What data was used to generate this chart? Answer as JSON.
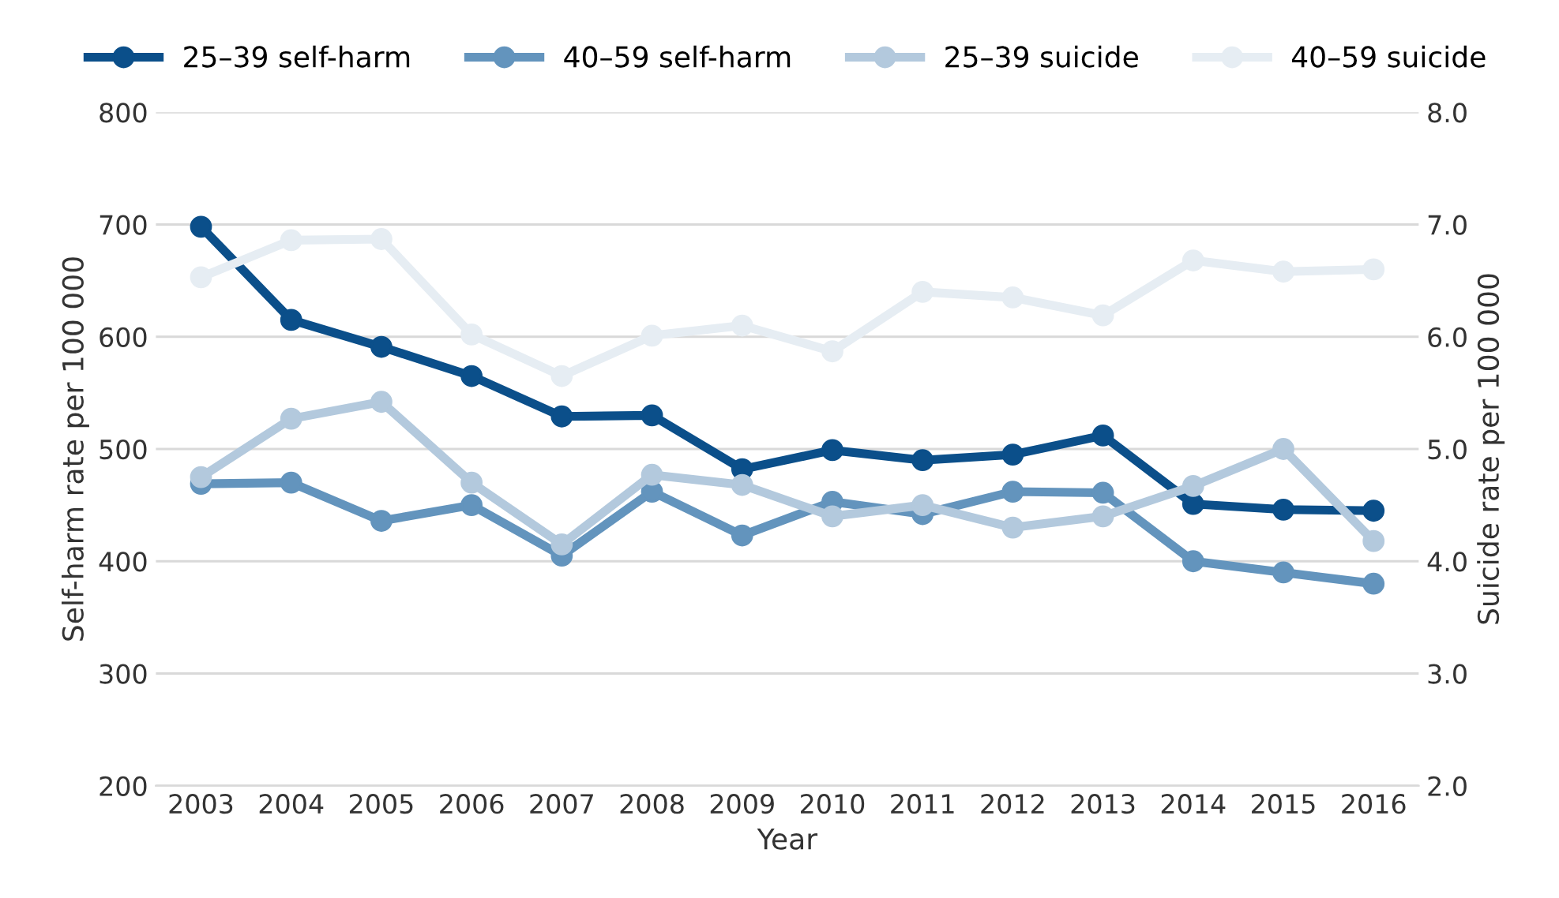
{
  "chart_data": {
    "type": "line",
    "xlabel": "Year",
    "ylabel": "Self-harm rate per 100 000",
    "y2label": "Suicide rate per 100 000",
    "categories": [
      "2003",
      "2004",
      "2005",
      "2006",
      "2007",
      "2008",
      "2009",
      "2010",
      "2011",
      "2012",
      "2013",
      "2014",
      "2015",
      "2016"
    ],
    "series": [
      {
        "name": "25–39 self-harm",
        "color": "#0b4f8a",
        "values": [
          698,
          615,
          591,
          565,
          529,
          530,
          482,
          499,
          490,
          495,
          512,
          451,
          446,
          445
        ]
      },
      {
        "name": "40–59 self-harm",
        "color": "#6394bd",
        "values": [
          469,
          470,
          436,
          450,
          405,
          462,
          423,
          453,
          442,
          462,
          461,
          400,
          390,
          380
        ]
      },
      {
        "name": "25–39 suicide",
        "color": "#b3c9dd",
        "axis": "y2",
        "values": [
          4.75,
          5.27,
          5.42,
          4.7,
          4.15,
          4.77,
          4.68,
          4.4,
          4.5,
          4.3,
          4.4,
          4.67,
          5.0,
          4.18
        ]
      },
      {
        "name": "40–59 suicide",
        "color": "#e6edf3",
        "axis": "y2",
        "values": [
          6.53,
          6.86,
          6.87,
          6.02,
          5.65,
          6.01,
          6.1,
          5.87,
          6.4,
          6.35,
          6.19,
          6.68,
          6.58,
          6.6
        ]
      }
    ],
    "ylim": [
      200,
      800
    ],
    "yticks": [
      200,
      300,
      400,
      500,
      600,
      700,
      800
    ],
    "y2lim": [
      2,
      8
    ],
    "y2ticks": [
      {
        "value": 2,
        "label": "2.0"
      },
      {
        "value": 3,
        "label": "3.0"
      },
      {
        "value": 4,
        "label": "4.0"
      },
      {
        "value": 5,
        "label": "5.0"
      },
      {
        "value": 6,
        "label": "6.0"
      },
      {
        "value": 7,
        "label": "7.0"
      },
      {
        "value": 8,
        "label": "8.0"
      }
    ],
    "grid": "y",
    "legend": "top",
    "marker": "circle",
    "line_style": "solid"
  }
}
